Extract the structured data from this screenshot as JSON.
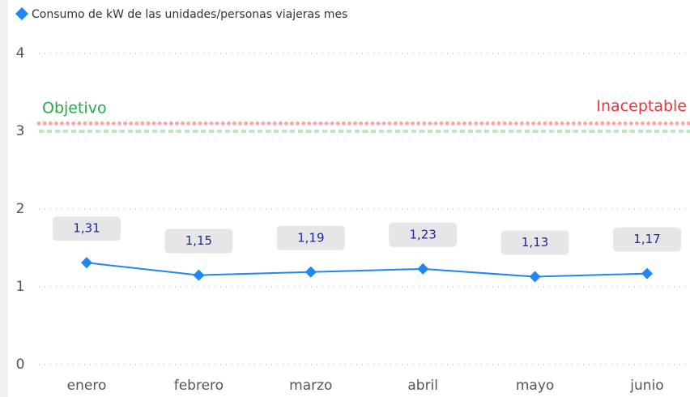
{
  "chart_data": {
    "type": "line",
    "categories": [
      "enero",
      "febrero",
      "marzo",
      "abril",
      "mayo",
      "junio"
    ],
    "series": [
      {
        "name": "Consumo de kW de las unidades/personas viajeras mes",
        "color": "#1f87ef",
        "values": [
          1.31,
          1.15,
          1.19,
          1.23,
          1.13,
          1.17
        ],
        "value_labels": [
          "1,31",
          "1,15",
          "1,19",
          "1,23",
          "1,13",
          "1,17"
        ]
      }
    ],
    "ylim": [
      0,
      4
    ],
    "yticks": [
      0,
      1,
      2,
      3,
      4
    ],
    "grid": true,
    "legend": "top-left",
    "reference_lines": [
      {
        "label": "Objetivo",
        "value": 3.0,
        "color": "#2aa84a"
      },
      {
        "label": "Inaceptable",
        "value": 3.1,
        "color": "#e8353b"
      }
    ]
  }
}
